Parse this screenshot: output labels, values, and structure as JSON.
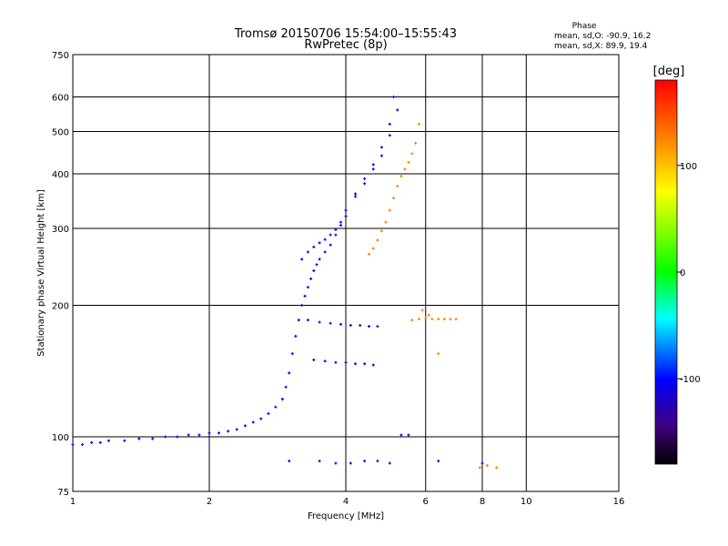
{
  "chart_data": {
    "type": "scatter",
    "title": "Tromsø 20150706 15:54:00–15:55:43",
    "subtitle": "RwPretec (8p)",
    "xlabel": "Frequency [MHz]",
    "ylabel": "Stationary phase Virtual Height [km]",
    "x_scale": "log",
    "y_scale": "log",
    "xlim": [
      1,
      16
    ],
    "ylim": [
      75,
      750
    ],
    "x_ticks": [
      1,
      2,
      4,
      6,
      8,
      10,
      16
    ],
    "y_ticks": [
      75,
      100,
      200,
      300,
      400,
      500,
      600,
      750
    ],
    "x_gridlines": [
      2,
      4,
      6,
      8,
      10
    ],
    "y_gridlines": [
      100,
      200,
      300,
      400,
      500,
      600
    ],
    "grid": true,
    "phase_stats": {
      "heading": "Phase",
      "line_o": "mean, sd,O: -90.9, 16.2",
      "line_x": "mean, sd,X:  89.9, 19.4"
    },
    "colorbar": {
      "label": "[deg]",
      "range": [
        -180,
        180
      ],
      "ticks": [
        100,
        0,
        -100
      ],
      "colors": [
        "#ff0000",
        "#ff8000",
        "#ffff00",
        "#00ff00",
        "#00ffff",
        "#0000ff",
        "#400080",
        "#000000"
      ]
    },
    "series": [
      {
        "phase": -110,
        "x": [
          1.0,
          1.05,
          1.1,
          1.15,
          1.2,
          1.3,
          1.4,
          1.5,
          1.6,
          1.7,
          1.8,
          1.9,
          2.0,
          2.1,
          2.2,
          2.3,
          2.4,
          2.5,
          2.6,
          2.7,
          2.8,
          2.9
        ],
        "y": [
          96,
          96,
          97,
          97,
          98,
          98,
          99,
          99,
          100,
          100,
          101,
          101,
          102,
          102,
          103,
          104,
          106,
          108,
          110,
          113,
          117,
          122
        ]
      },
      {
        "phase": -105,
        "x": [
          2.9,
          2.95,
          3.0,
          3.05,
          3.1,
          3.15,
          3.2,
          3.25,
          3.3,
          3.35,
          3.4,
          3.45,
          3.5,
          3.6,
          3.7,
          3.8,
          3.9,
          4.0,
          4.2,
          4.4,
          4.6,
          4.8,
          5.0,
          5.2
        ],
        "y": [
          122,
          130,
          140,
          155,
          170,
          185,
          200,
          210,
          220,
          230,
          240,
          248,
          255,
          265,
          275,
          290,
          305,
          320,
          355,
          380,
          410,
          440,
          490,
          560
        ]
      },
      {
        "phase": -100,
        "x": [
          3.2,
          3.3,
          3.4,
          3.5,
          3.6,
          3.7,
          3.8,
          3.9,
          4.0,
          4.2,
          4.4,
          4.6,
          4.8,
          5.0,
          5.1
        ],
        "y": [
          255,
          265,
          272,
          278,
          283,
          290,
          298,
          310,
          330,
          360,
          390,
          420,
          460,
          520,
          600
        ]
      },
      {
        "phase": -95,
        "x": [
          3.3,
          3.5,
          3.7,
          3.9,
          4.1,
          4.3,
          4.5,
          4.7,
          3.4,
          3.6,
          3.8,
          4.0,
          4.2,
          4.4,
          4.6
        ],
        "y": [
          185,
          183,
          182,
          181,
          180,
          180,
          179,
          179,
          150,
          149,
          148,
          148,
          147,
          147,
          146
        ]
      },
      {
        "phase": -90,
        "x": [
          3.0,
          3.5,
          3.8,
          4.1,
          4.4,
          4.7,
          5.0,
          5.3,
          5.5,
          6.4,
          8.0
        ],
        "y": [
          88,
          88,
          87,
          87,
          88,
          88,
          87,
          101,
          101,
          88,
          87
        ]
      },
      {
        "phase": 105,
        "x": [
          4.5,
          4.6,
          4.7,
          4.8,
          4.9,
          5.0,
          5.1,
          5.2,
          5.3,
          5.4,
          5.5,
          5.6,
          5.7,
          5.8
        ],
        "y": [
          262,
          270,
          282,
          296,
          310,
          330,
          352,
          375,
          395,
          410,
          425,
          445,
          470,
          520
        ]
      },
      {
        "phase": 120,
        "x": [
          5.8,
          6.0,
          6.2,
          6.4,
          6.6,
          6.8,
          7.0,
          5.6,
          5.9
        ],
        "y": [
          186,
          187,
          186,
          186,
          186,
          186,
          186,
          185,
          195
        ]
      },
      {
        "phase": 150,
        "x": [
          7.9,
          8.2,
          8.6,
          6.4,
          6.1
        ],
        "y": [
          85,
          86,
          85,
          155,
          190
        ]
      }
    ]
  }
}
